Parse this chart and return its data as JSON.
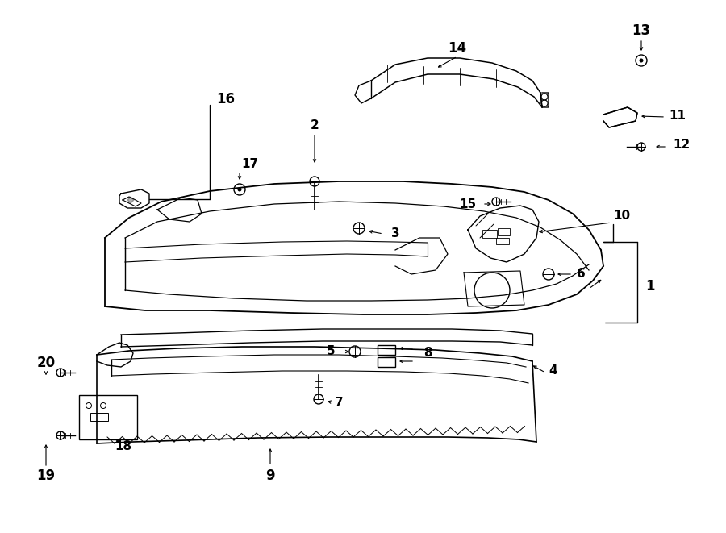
{
  "bg_color": "#ffffff",
  "line_color": "#000000",
  "figsize": [
    9.0,
    6.61
  ],
  "dpi": 100,
  "lw": 1.0,
  "label_fontsize": 12,
  "label_fontsize_small": 11
}
